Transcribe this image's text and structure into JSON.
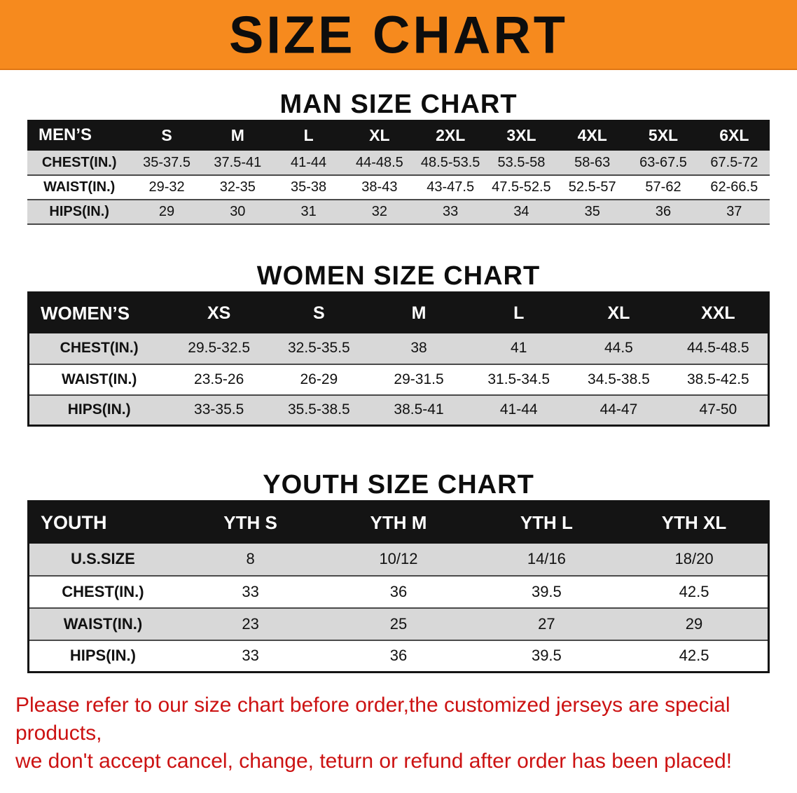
{
  "banner": {
    "title": "SIZE CHART"
  },
  "sections": {
    "men": {
      "heading": "MAN SIZE CHART",
      "table": {
        "header": [
          "MEN’S",
          "S",
          "M",
          "L",
          "XL",
          "2XL",
          "3XL",
          "4XL",
          "5XL",
          "6XL"
        ],
        "rows": [
          [
            "CHEST(IN.)",
            "35-37.5",
            "37.5-41",
            "41-44",
            "44-48.5",
            "48.5-53.5",
            "53.5-58",
            "58-63",
            "63-67.5",
            "67.5-72"
          ],
          [
            "WAIST(IN.)",
            "29-32",
            "32-35",
            "35-38",
            "38-43",
            "43-47.5",
            "47.5-52.5",
            "52.5-57",
            "57-62",
            "62-66.5"
          ],
          [
            "HIPS(IN.)",
            "29",
            "30",
            "31",
            "32",
            "33",
            "34",
            "35",
            "36",
            "37"
          ]
        ]
      }
    },
    "women": {
      "heading": "WOMEN SIZE CHART",
      "table": {
        "header": [
          "WOMEN’S",
          "XS",
          "S",
          "M",
          "L",
          "XL",
          "XXL"
        ],
        "rows": [
          [
            "CHEST(IN.)",
            "29.5-32.5",
            "32.5-35.5",
            "38",
            "41",
            "44.5",
            "44.5-48.5"
          ],
          [
            "WAIST(IN.)",
            "23.5-26",
            "26-29",
            "29-31.5",
            "31.5-34.5",
            "34.5-38.5",
            "38.5-42.5"
          ],
          [
            "HIPS(IN.)",
            "33-35.5",
            "35.5-38.5",
            "38.5-41",
            "41-44",
            "44-47",
            "47-50"
          ]
        ]
      }
    },
    "youth": {
      "heading": "YOUTH SIZE CHART",
      "table": {
        "header": [
          "YOUTH",
          "YTH S",
          "YTH M",
          "YTH L",
          "YTH XL"
        ],
        "rows": [
          [
            "U.S.SIZE",
            "8",
            "10/12",
            "14/16",
            "18/20"
          ],
          [
            "CHEST(IN.)",
            "33",
            "36",
            "39.5",
            "42.5"
          ],
          [
            "WAIST(IN.)",
            "23",
            "25",
            "27",
            "29"
          ],
          [
            "HIPS(IN.)",
            "33",
            "36",
            "39.5",
            "42.5"
          ]
        ]
      }
    }
  },
  "disclaimer": {
    "line1": "Please refer to our size chart before order,the customized jerseys are special products,",
    "line2": "we don't accept cancel, change, teturn or refund after order has been placed!"
  },
  "colors": {
    "banner_bg": "#f68a1e",
    "header_bg": "#141414",
    "stripe": "#d8d8d8",
    "disclaimer_text": "#cc1212"
  }
}
